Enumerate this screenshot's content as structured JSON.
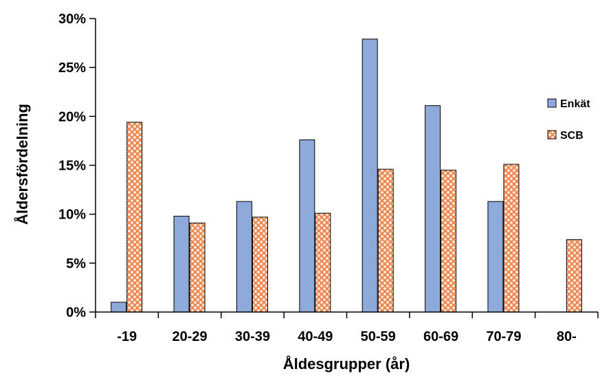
{
  "chart_data": {
    "type": "bar",
    "title": "",
    "xlabel": "Åldesgrupper (år)",
    "ylabel": "Åldersfördelning",
    "categories": [
      "-19",
      "20-29",
      "30-39",
      "40-49",
      "50-59",
      "60-69",
      "70-79",
      "80-"
    ],
    "series": [
      {
        "name": "Enkät",
        "values": [
          1.0,
          9.8,
          11.3,
          17.6,
          27.9,
          21.1,
          11.3,
          0
        ],
        "color": "#8eaadb",
        "pattern": "solid"
      },
      {
        "name": "SCB",
        "values": [
          19.4,
          9.1,
          9.7,
          10.1,
          14.6,
          14.5,
          15.1,
          7.4
        ],
        "color": "#e9773a",
        "pattern": "crosshatch"
      }
    ],
    "ylim": [
      0,
      30
    ],
    "yticks": [
      0,
      5,
      10,
      15,
      20,
      25,
      30
    ],
    "ytick_labels": [
      "0%",
      "5%",
      "10%",
      "15%",
      "20%",
      "25%",
      "30%"
    ],
    "grid": false,
    "legend_position": "right"
  }
}
